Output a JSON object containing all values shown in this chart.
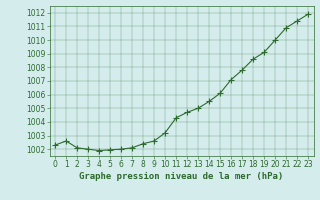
{
  "x": [
    0,
    1,
    2,
    3,
    4,
    5,
    6,
    7,
    8,
    9,
    10,
    11,
    12,
    13,
    14,
    15,
    16,
    17,
    18,
    19,
    20,
    21,
    22,
    23
  ],
  "y": [
    1002.3,
    1002.6,
    1002.1,
    1002.0,
    1001.9,
    1001.95,
    1002.0,
    1002.1,
    1002.4,
    1002.6,
    1003.2,
    1004.3,
    1004.7,
    1005.0,
    1005.5,
    1006.1,
    1007.1,
    1007.8,
    1008.6,
    1009.1,
    1010.0,
    1010.9,
    1011.4,
    1011.9
  ],
  "line_color": "#2d6a2d",
  "marker": "+",
  "marker_color": "#2d6a2d",
  "bg_color": "#d4edec",
  "grid_color": "#2d6a2d",
  "xlabel": "Graphe pression niveau de la mer (hPa)",
  "xlabel_color": "#2d6a2d",
  "tick_color": "#2d6a2d",
  "ylim": [
    1001.5,
    1012.5
  ],
  "xlim": [
    -0.5,
    23.5
  ],
  "yticks": [
    1002,
    1003,
    1004,
    1005,
    1006,
    1007,
    1008,
    1009,
    1010,
    1011,
    1012
  ],
  "xticks": [
    0,
    1,
    2,
    3,
    4,
    5,
    6,
    7,
    8,
    9,
    10,
    11,
    12,
    13,
    14,
    15,
    16,
    17,
    18,
    19,
    20,
    21,
    22,
    23
  ],
  "xlabel_fontsize": 6.5,
  "tick_fontsize": 5.5,
  "line_width": 0.8,
  "marker_size": 4
}
